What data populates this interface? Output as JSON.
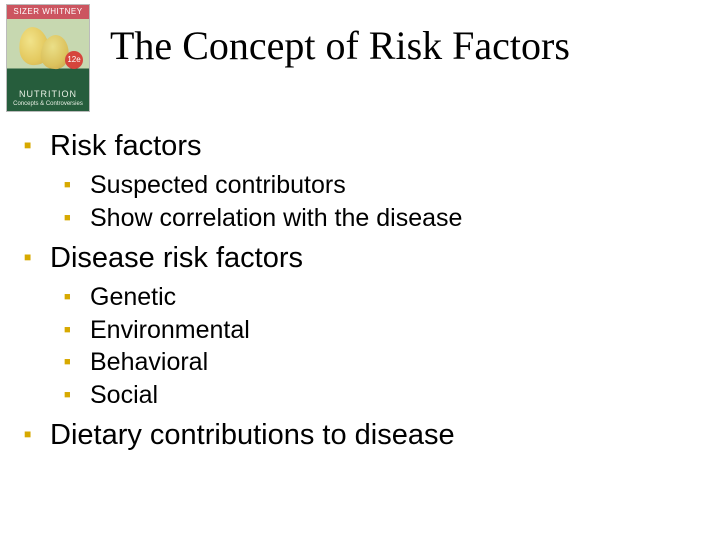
{
  "cover": {
    "banner": "SIZER  WHITNEY",
    "badge": "12e",
    "line1": "NUTRITION",
    "line2": "Concepts & Controversies"
  },
  "title": "The Concept of Risk Factors",
  "bullets": [
    {
      "text": "Risk factors",
      "children": [
        "Suspected contributors",
        "Show correlation with the disease"
      ]
    },
    {
      "text": "Disease risk factors",
      "children": [
        "Genetic",
        "Environmental",
        "Behavioral",
        "Social"
      ]
    },
    {
      "text": "Dietary contributions to disease",
      "children": []
    }
  ],
  "colors": {
    "bullet": "#d7a900",
    "text": "#000000",
    "background": "#ffffff"
  }
}
